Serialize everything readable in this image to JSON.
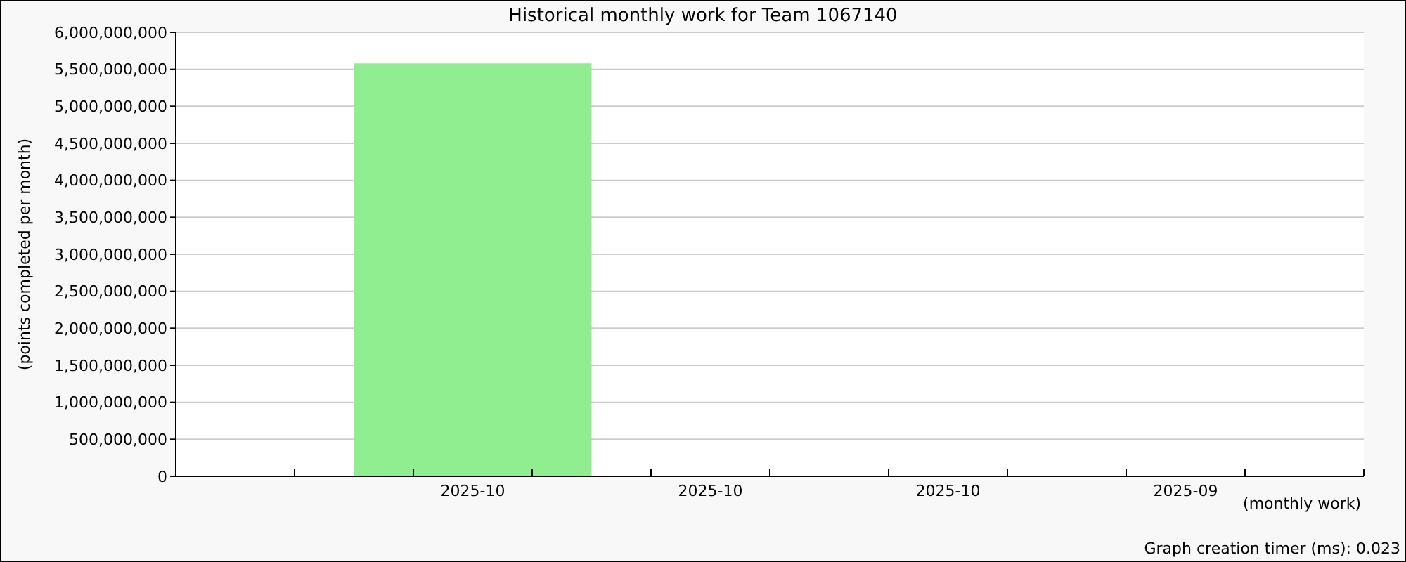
{
  "chart_data": {
    "type": "bar",
    "title": "Historical monthly work for Team 1067140",
    "xlabel": "(monthly work)",
    "ylabel": "(points completed per month)",
    "categories": [
      "2025-10",
      "2025-10",
      "2025-10",
      "2025-09"
    ],
    "values": [
      5580000000,
      0,
      0,
      0
    ],
    "color": "#90ee90",
    "ylim": [
      0,
      6000000000
    ],
    "yticks": [
      {
        "value": 0,
        "label": "0"
      },
      {
        "value": 500000000,
        "label": "500,000,000"
      },
      {
        "value": 1000000000,
        "label": "1,000,000,000"
      },
      {
        "value": 1500000000,
        "label": "1,500,000,000"
      },
      {
        "value": 2000000000,
        "label": "2,000,000,000"
      },
      {
        "value": 2500000000,
        "label": "2,500,000,000"
      },
      {
        "value": 3000000000,
        "label": "3,000,000,000"
      },
      {
        "value": 3500000000,
        "label": "3,500,000,000"
      },
      {
        "value": 4000000000,
        "label": "4,000,000,000"
      },
      {
        "value": 4500000000,
        "label": "4,500,000,000"
      },
      {
        "value": 5000000000,
        "label": "5,000,000,000"
      },
      {
        "value": 5500000000,
        "label": "5,500,000,000"
      },
      {
        "value": 6000000000,
        "label": "6,000,000,000"
      }
    ],
    "grid": "y",
    "annotations": [
      "Graph creation timer (ms): 0.023"
    ]
  }
}
